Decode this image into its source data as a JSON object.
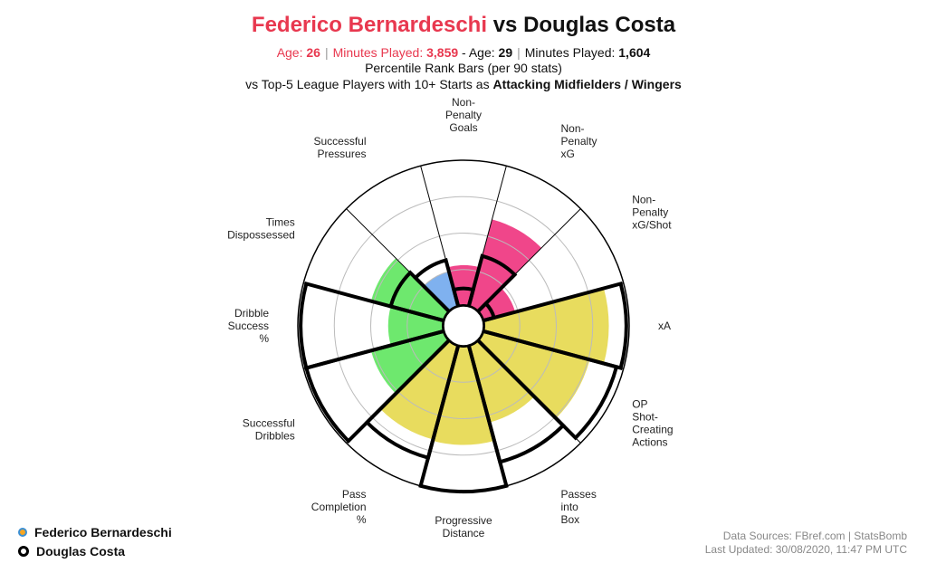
{
  "title": {
    "player1": "Federico Bernardeschi",
    "vs": "vs",
    "player2": "Douglas Costa"
  },
  "info": {
    "p1_age_label": "Age:",
    "p1_age": "26",
    "p1_minutes_label": "Minutes Played:",
    "p1_minutes": "3,859",
    "dash": "-",
    "p2_age_label": "Age:",
    "p2_age": "29",
    "p2_minutes_label": "Minutes Played:",
    "p2_minutes": "1,604"
  },
  "subtitle1": "Percentile Rank Bars (per 90 stats)",
  "subtitle2_prefix": "vs Top-5 League Players with 10+ Starts as",
  "subtitle2_bold": "Attacking Midfielders / Wingers",
  "legend": {
    "player1": "Federico Bernardeschi",
    "player2": "Douglas Costa"
  },
  "sources": {
    "line1": "Data Sources: FBref.com | StatsBomb",
    "line2": "Last Updated: 30/08/2020, 11:47 PM UTC"
  },
  "colors": {
    "title_p1": "#e8384f",
    "attacking": "#f0468a",
    "passing": "#e8dc5e",
    "dribbling": "#6ee86e",
    "defending": "#7fb1ef",
    "outline": "#000000",
    "grid": "#bbbbbb"
  },
  "chart_data": {
    "type": "polar-bar",
    "range": [
      0,
      100
    ],
    "categories": [
      "Non-Penalty Goals",
      "Non-Penalty xG",
      "Non-Penalty xG/Shot",
      "xA",
      "OP Shot-Creating Actions",
      "Passes into Box",
      "Progressive Distance",
      "Pass Completion %",
      "Successful Dribbles",
      "Dribble Success %",
      "Times Dispossessed",
      "Successful Pressures"
    ],
    "label_lines": [
      [
        "Non-",
        "Penalty",
        "Goals"
      ],
      [
        "Non-",
        "Penalty",
        "xG"
      ],
      [
        "Non-",
        "Penalty",
        "xG/Shot"
      ],
      [
        "xA"
      ],
      [
        "OP",
        "Shot-",
        "Creating",
        "Actions"
      ],
      [
        "Passes",
        "into",
        "Box"
      ],
      [
        "Progressive",
        "Distance"
      ],
      [
        "Pass",
        "Completion",
        "%"
      ],
      [
        "Successful",
        "Dribbles"
      ],
      [
        "Dribble",
        "Success",
        "%"
      ],
      [
        "Times",
        "Dispossessed"
      ],
      [
        "Successful",
        "Pressures"
      ]
    ],
    "groups": [
      "attacking",
      "attacking",
      "attacking",
      "passing",
      "passing",
      "passing",
      "passing",
      "passing",
      "dribbling",
      "dribbling",
      "dribbling",
      "defending"
    ],
    "series": [
      {
        "name": "Federico Bernardeschi",
        "values": [
          28,
          62,
          23,
          86,
          76,
          55,
          68,
          67,
          52,
          38,
          52,
          25
        ]
      },
      {
        "name": "Douglas Costa",
        "values": [
          12,
          36,
          8,
          98,
          95,
          83,
          100,
          80,
          98,
          98,
          38,
          33
        ]
      }
    ]
  }
}
